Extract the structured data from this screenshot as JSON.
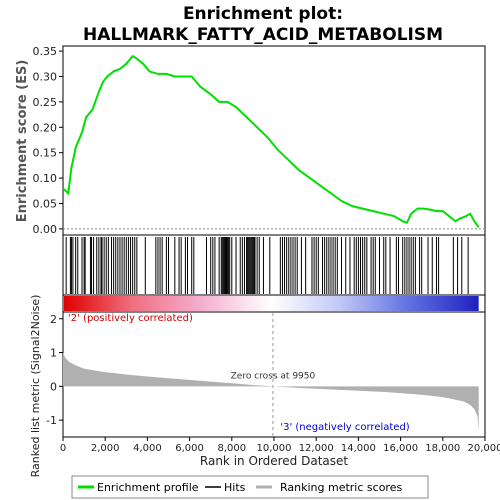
{
  "chart_data": {
    "type": "line",
    "title_line1": "Enrichment plot:",
    "title_line2": "HALLMARK_FATTY_ACID_METABOLISM",
    "top_panel": {
      "ylabel": "Enrichment score (ES)",
      "ylim": [
        -0.012,
        0.36
      ],
      "yticks": [
        0.0,
        0.05,
        0.1,
        0.15,
        0.2,
        0.25,
        0.3,
        0.35
      ],
      "ytick_labels": [
        "0.00",
        "0.05",
        "0.10",
        "0.15",
        "0.20",
        "0.25",
        "0.30",
        "0.35"
      ],
      "series": [
        {
          "name": "Enrichment profile",
          "color": "#00e000",
          "x": [
            0,
            250,
            400,
            600,
            900,
            1100,
            1400,
            1700,
            1900,
            2100,
            2400,
            2700,
            3000,
            3300,
            3500,
            3800,
            4100,
            4500,
            4900,
            5300,
            5700,
            6100,
            6500,
            7000,
            7400,
            7800,
            8200,
            8700,
            9200,
            9700,
            10200,
            10700,
            11200,
            11700,
            12200,
            12700,
            13200,
            13700,
            14200,
            14700,
            15200,
            15700,
            16100,
            16300,
            16500,
            16800,
            17100,
            17400,
            17700,
            18000,
            18300,
            18600,
            18800,
            19100,
            19300,
            19500,
            19700
          ],
          "y": [
            0.08,
            0.07,
            0.12,
            0.16,
            0.19,
            0.22,
            0.235,
            0.27,
            0.29,
            0.3,
            0.31,
            0.315,
            0.325,
            0.34,
            0.335,
            0.325,
            0.31,
            0.305,
            0.305,
            0.3,
            0.3,
            0.3,
            0.28,
            0.265,
            0.25,
            0.25,
            0.24,
            0.22,
            0.2,
            0.18,
            0.155,
            0.135,
            0.115,
            0.1,
            0.085,
            0.07,
            0.055,
            0.045,
            0.04,
            0.035,
            0.03,
            0.025,
            0.015,
            0.012,
            0.03,
            0.04,
            0.04,
            0.038,
            0.035,
            0.035,
            0.025,
            0.015,
            0.02,
            0.025,
            0.03,
            0.015,
            0.003
          ]
        }
      ]
    },
    "hits_panel": {
      "hit_positions": [
        150,
        350,
        400,
        470,
        600,
        700,
        900,
        1000,
        1050,
        1300,
        1350,
        1450,
        1600,
        1700,
        1800,
        1850,
        1950,
        2050,
        2150,
        2300,
        2400,
        2500,
        2600,
        2700,
        2800,
        2900,
        3000,
        3100,
        3200,
        3300,
        3400,
        3500,
        3900,
        4400,
        4500,
        4600,
        4700,
        4900,
        5000,
        5300,
        5500,
        5600,
        5800,
        5900,
        6100,
        6200,
        6800,
        7000,
        7100,
        7200,
        7400,
        7500,
        7550,
        7600,
        7650,
        7700,
        7750,
        7800,
        7850,
        7900,
        8000,
        8200,
        8400,
        8500,
        8600,
        8700,
        8750,
        8800,
        8850,
        8900,
        8950,
        9000,
        9050,
        9100,
        9200,
        9300,
        9500,
        9800,
        10300,
        10400,
        10500,
        10600,
        10700,
        10800,
        10900,
        11000,
        11100,
        11300,
        11500,
        11800,
        11900,
        12000,
        12100,
        12300,
        12400,
        12500,
        12600,
        12700,
        12800,
        12900,
        13000,
        13200,
        13400,
        13600,
        13800,
        13900,
        14000,
        14100,
        14200,
        14300,
        14400,
        14600,
        14700,
        14800,
        15000,
        15200,
        15300,
        15500,
        15800,
        15900,
        16100,
        16200,
        16300,
        16400,
        16500,
        16600,
        16700,
        16900,
        17000,
        17300,
        17500,
        17700,
        17800,
        18500,
        18700,
        18900,
        19200
      ]
    },
    "rank_panel": {
      "gradient_colors": [
        "#e00000",
        "#f07080",
        "#f4b0d0",
        "#ffffff",
        "#c0c8f4",
        "#6070e0",
        "#2020c0"
      ],
      "label_positive": "'2' (positively correlated)",
      "label_positive_color": "#d00000",
      "label_negative": "'3' (negatively correlated)",
      "label_negative_color": "#0000d0",
      "zero_cross_label": "Zero cross at 9950",
      "zero_cross_at": 9950,
      "ylabel": "Ranked list metric (Signal2Noise)",
      "ylim": [
        -1.5,
        2.2
      ],
      "yticks": [
        -1,
        0,
        1,
        2
      ],
      "ytick_labels": [
        "-1",
        "0",
        "1",
        "2"
      ],
      "metric_x": [
        0,
        100,
        300,
        600,
        1000,
        2000,
        3000,
        4000,
        5000,
        6000,
        7000,
        8000,
        9000,
        9950,
        11000,
        12000,
        13000,
        14000,
        15000,
        16000,
        17000,
        18000,
        18500,
        19000,
        19300,
        19500,
        19650,
        19700
      ],
      "metric_y": [
        1.0,
        0.85,
        0.72,
        0.62,
        0.52,
        0.42,
        0.35,
        0.29,
        0.24,
        0.19,
        0.14,
        0.09,
        0.04,
        0.0,
        -0.04,
        -0.07,
        -0.1,
        -0.13,
        -0.16,
        -0.2,
        -0.25,
        -0.32,
        -0.38,
        -0.45,
        -0.55,
        -0.68,
        -0.9,
        -1.38
      ],
      "fill_color": "#b0b0b0"
    },
    "xlabel": "Rank in Ordered Dataset",
    "xlim": [
      0,
      20000
    ],
    "xticks": [
      0,
      2000,
      4000,
      6000,
      8000,
      10000,
      12000,
      14000,
      16000,
      18000,
      20000
    ],
    "xtick_labels": [
      "0",
      "2,000",
      "4,000",
      "6,000",
      "8,000",
      "10,000",
      "12,000",
      "14,000",
      "16,000",
      "18,000",
      "20,000"
    ],
    "legend": {
      "placement": "bottom",
      "entries": [
        {
          "label": "Enrichment profile",
          "color": "#00e000"
        },
        {
          "label": "Hits",
          "color": "#000000"
        },
        {
          "label": "Ranking metric scores",
          "color": "#b0b0b0"
        }
      ]
    }
  }
}
